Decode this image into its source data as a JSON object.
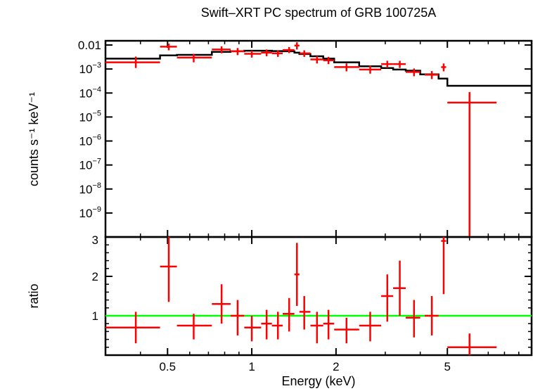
{
  "chart_data": [
    {
      "type": "scatter",
      "title": "Swift–XRT PC spectrum of GRB 100725A",
      "xlabel": "Energy (keV)",
      "ylabel": "counts s⁻¹ keV⁻¹",
      "xscale": "log",
      "yscale": "log",
      "xlim": [
        0.3,
        10
      ],
      "ylim": [
        1e-10,
        0.015
      ],
      "yticks": [
        {
          "v": 0.01,
          "label": "0.01"
        },
        {
          "v": 0.001,
          "base": "10",
          "exp": "−3"
        },
        {
          "v": 0.0001,
          "base": "10",
          "exp": "−4"
        },
        {
          "v": 1e-05,
          "base": "10",
          "exp": "−5"
        },
        {
          "v": 1e-06,
          "base": "10",
          "exp": "−6"
        },
        {
          "v": 1e-07,
          "base": "10",
          "exp": "−7"
        },
        {
          "v": 1e-08,
          "base": "10",
          "exp": "−8"
        },
        {
          "v": 1e-09,
          "base": "10",
          "exp": "−9"
        }
      ],
      "series": [
        {
          "role": "data",
          "color": "#ff0000",
          "points": [
            {
              "x": 0.385,
              "xlo": 0.3,
              "xhi": 0.47,
              "y": 0.0019,
              "ylo": 0.0011,
              "yhi": 0.0033
            },
            {
              "x": 0.505,
              "xlo": 0.47,
              "xhi": 0.54,
              "y": 0.0085,
              "ylo": 0.006,
              "yhi": 0.0115
            },
            {
              "x": 0.62,
              "xlo": 0.54,
              "xhi": 0.72,
              "y": 0.003,
              "ylo": 0.0019,
              "yhi": 0.0043
            },
            {
              "x": 0.78,
              "xlo": 0.72,
              "xhi": 0.84,
              "y": 0.0065,
              "ylo": 0.0045,
              "yhi": 0.0088
            },
            {
              "x": 0.89,
              "xlo": 0.84,
              "xhi": 0.94,
              "y": 0.0055,
              "ylo": 0.0038,
              "yhi": 0.0075
            },
            {
              "x": 1.0,
              "xlo": 0.94,
              "xhi": 1.08,
              "y": 0.0043,
              "ylo": 0.003,
              "yhi": 0.0058
            },
            {
              "x": 1.13,
              "xlo": 1.08,
              "xhi": 1.18,
              "y": 0.0048,
              "ylo": 0.0034,
              "yhi": 0.0065
            },
            {
              "x": 1.24,
              "xlo": 1.18,
              "xhi": 1.29,
              "y": 0.0045,
              "ylo": 0.0032,
              "yhi": 0.006
            },
            {
              "x": 1.36,
              "xlo": 1.29,
              "xhi": 1.42,
              "y": 0.0062,
              "ylo": 0.0046,
              "yhi": 0.0082
            },
            {
              "x": 1.45,
              "xlo": 1.42,
              "xhi": 1.48,
              "y": 0.0095,
              "ylo": 0.0065,
              "yhi": 0.013
            },
            {
              "x": 1.54,
              "xlo": 1.48,
              "xhi": 1.62,
              "y": 0.0045,
              "ylo": 0.0032,
              "yhi": 0.006
            },
            {
              "x": 1.71,
              "xlo": 1.62,
              "xhi": 1.8,
              "y": 0.0025,
              "ylo": 0.0017,
              "yhi": 0.0035
            },
            {
              "x": 1.88,
              "xlo": 1.8,
              "xhi": 1.97,
              "y": 0.0023,
              "ylo": 0.0016,
              "yhi": 0.0032
            },
            {
              "x": 2.18,
              "xlo": 1.97,
              "xhi": 2.42,
              "y": 0.0012,
              "ylo": 0.0008,
              "yhi": 0.0017
            },
            {
              "x": 2.65,
              "xlo": 2.42,
              "xhi": 2.9,
              "y": 0.00095,
              "ylo": 0.00064,
              "yhi": 0.0014
            },
            {
              "x": 3.05,
              "xlo": 2.9,
              "xhi": 3.2,
              "y": 0.0016,
              "ylo": 0.0011,
              "yhi": 0.0022
            },
            {
              "x": 3.38,
              "xlo": 3.2,
              "xhi": 3.55,
              "y": 0.0016,
              "ylo": 0.0011,
              "yhi": 0.0022
            },
            {
              "x": 3.8,
              "xlo": 3.55,
              "xhi": 4.0,
              "y": 0.00075,
              "ylo": 0.0005,
              "yhi": 0.00105
            },
            {
              "x": 4.4,
              "xlo": 4.15,
              "xhi": 4.65,
              "y": 0.00058,
              "ylo": 0.00038,
              "yhi": 0.00082
            },
            {
              "x": 4.85,
              "xlo": 4.75,
              "xhi": 4.95,
              "y": 0.0012,
              "ylo": 0.0008,
              "yhi": 0.0017
            },
            {
              "x": 6.0,
              "xlo": 5.0,
              "xhi": 7.5,
              "y": 4e-05,
              "ylo": 1e-10,
              "yhi": 0.00011
            }
          ]
        },
        {
          "role": "model",
          "color": "#000000",
          "steps": [
            {
              "x0": 0.3,
              "x1": 0.47,
              "y": 0.0027
            },
            {
              "x0": 0.47,
              "x1": 0.54,
              "y": 0.0037
            },
            {
              "x0": 0.54,
              "x1": 0.72,
              "y": 0.0039
            },
            {
              "x0": 0.72,
              "x1": 0.84,
              "y": 0.0052
            },
            {
              "x0": 0.84,
              "x1": 0.94,
              "y": 0.0055
            },
            {
              "x0": 0.94,
              "x1": 1.08,
              "y": 0.0058
            },
            {
              "x0": 1.08,
              "x1": 1.18,
              "y": 0.0058
            },
            {
              "x0": 1.18,
              "x1": 1.29,
              "y": 0.0056
            },
            {
              "x0": 1.29,
              "x1": 1.42,
              "y": 0.0055
            },
            {
              "x0": 1.42,
              "x1": 1.48,
              "y": 0.0048
            },
            {
              "x0": 1.48,
              "x1": 1.62,
              "y": 0.0042
            },
            {
              "x0": 1.62,
              "x1": 1.8,
              "y": 0.0034
            },
            {
              "x0": 1.8,
              "x1": 1.97,
              "y": 0.0027
            },
            {
              "x0": 1.97,
              "x1": 2.42,
              "y": 0.0019
            },
            {
              "x0": 2.42,
              "x1": 2.9,
              "y": 0.0013
            },
            {
              "x0": 2.9,
              "x1": 3.2,
              "y": 0.0011
            },
            {
              "x0": 3.2,
              "x1": 3.55,
              "y": 0.00095
            },
            {
              "x0": 3.55,
              "x1": 4.0,
              "y": 0.00085
            },
            {
              "x0": 4.0,
              "x1": 4.65,
              "y": 0.0006
            },
            {
              "x0": 4.65,
              "x1": 5.0,
              "y": 0.0004
            },
            {
              "x0": 5.0,
              "x1": 10.0,
              "y": 0.0002
            }
          ]
        }
      ]
    },
    {
      "type": "scatter",
      "xlabel": "Energy (keV)",
      "ylabel": "ratio",
      "xscale": "log",
      "xlim": [
        0.3,
        10
      ],
      "ylim": [
        0,
        3
      ],
      "xticks": [
        {
          "v": 0.5,
          "label": "0.5"
        },
        {
          "v": 1,
          "label": "1"
        },
        {
          "v": 2,
          "label": "2"
        },
        {
          "v": 5,
          "label": "5"
        }
      ],
      "yticks": [
        {
          "v": 1,
          "label": "1"
        },
        {
          "v": 2,
          "label": "2"
        },
        {
          "v": 3,
          "label": "3"
        }
      ],
      "reference_line": {
        "y": 1,
        "color": "#00ff00"
      },
      "series": [
        {
          "role": "data",
          "color": "#ff0000",
          "points": [
            {
              "x": 0.385,
              "xlo": 0.3,
              "xhi": 0.47,
              "y": 0.7,
              "ylo": 0.3,
              "yhi": 1.1
            },
            {
              "x": 0.505,
              "xlo": 0.47,
              "xhi": 0.54,
              "y": 2.25,
              "ylo": 1.35,
              "yhi": 3.0
            },
            {
              "x": 0.62,
              "xlo": 0.54,
              "xhi": 0.72,
              "y": 0.75,
              "ylo": 0.4,
              "yhi": 1.05
            },
            {
              "x": 0.78,
              "xlo": 0.72,
              "xhi": 0.84,
              "y": 1.3,
              "ylo": 0.8,
              "yhi": 1.8
            },
            {
              "x": 0.89,
              "xlo": 0.84,
              "xhi": 0.94,
              "y": 1.0,
              "ylo": 0.5,
              "yhi": 1.4
            },
            {
              "x": 1.0,
              "xlo": 0.94,
              "xhi": 1.08,
              "y": 0.7,
              "ylo": 0.35,
              "yhi": 1.0
            },
            {
              "x": 1.13,
              "xlo": 1.08,
              "xhi": 1.18,
              "y": 0.8,
              "ylo": 0.4,
              "yhi": 1.15
            },
            {
              "x": 1.24,
              "xlo": 1.18,
              "xhi": 1.29,
              "y": 0.75,
              "ylo": 0.4,
              "yhi": 1.1
            },
            {
              "x": 1.36,
              "xlo": 1.29,
              "xhi": 1.42,
              "y": 1.05,
              "ylo": 0.6,
              "yhi": 1.45
            },
            {
              "x": 1.45,
              "xlo": 1.42,
              "xhi": 1.48,
              "y": 2.05,
              "ylo": 1.25,
              "yhi": 2.85
            },
            {
              "x": 1.54,
              "xlo": 1.48,
              "xhi": 1.62,
              "y": 1.1,
              "ylo": 0.65,
              "yhi": 1.5
            },
            {
              "x": 1.71,
              "xlo": 1.62,
              "xhi": 1.8,
              "y": 0.75,
              "ylo": 0.3,
              "yhi": 1.1
            },
            {
              "x": 1.88,
              "xlo": 1.8,
              "xhi": 1.97,
              "y": 0.8,
              "ylo": 0.4,
              "yhi": 1.15
            },
            {
              "x": 2.18,
              "xlo": 1.97,
              "xhi": 2.42,
              "y": 0.65,
              "ylo": 0.3,
              "yhi": 0.95
            },
            {
              "x": 2.65,
              "xlo": 2.42,
              "xhi": 2.9,
              "y": 0.75,
              "ylo": 0.35,
              "yhi": 1.1
            },
            {
              "x": 3.05,
              "xlo": 2.9,
              "xhi": 3.2,
              "y": 1.5,
              "ylo": 0.85,
              "yhi": 2.05
            },
            {
              "x": 3.38,
              "xlo": 3.2,
              "xhi": 3.55,
              "y": 1.7,
              "ylo": 1.0,
              "yhi": 2.4
            },
            {
              "x": 3.8,
              "xlo": 3.55,
              "xhi": 4.0,
              "y": 0.95,
              "ylo": 0.45,
              "yhi": 1.4
            },
            {
              "x": 4.4,
              "xlo": 4.15,
              "xhi": 4.65,
              "y": 1.0,
              "ylo": 0.5,
              "yhi": 1.5
            },
            {
              "x": 4.85,
              "xlo": 4.75,
              "xhi": 4.95,
              "y": 2.9,
              "ylo": 1.55,
              "yhi": 3.0
            },
            {
              "x": 6.0,
              "xlo": 5.0,
              "xhi": 7.5,
              "y": 0.2,
              "ylo": 0.0,
              "yhi": 0.55
            }
          ]
        }
      ]
    }
  ]
}
